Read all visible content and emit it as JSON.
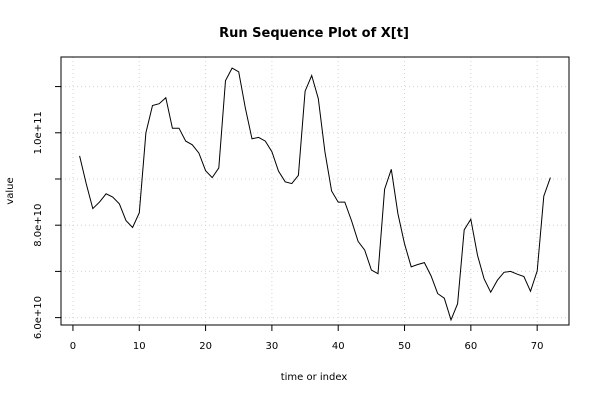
{
  "chart_data": {
    "type": "line",
    "title": "Run Sequence Plot of X[t]",
    "xlabel": "time or index",
    "ylabel": "value",
    "xlim": [
      -1.8,
      74.8
    ],
    "ylim": [
      58400000000,
      116400000000
    ],
    "x_ticks": [
      {
        "value": 0,
        "label": "0"
      },
      {
        "value": 10,
        "label": "10"
      },
      {
        "value": 20,
        "label": "20"
      },
      {
        "value": 30,
        "label": "30"
      },
      {
        "value": 40,
        "label": "40"
      },
      {
        "value": 50,
        "label": "50"
      },
      {
        "value": 60,
        "label": "60"
      },
      {
        "value": 70,
        "label": "70"
      }
    ],
    "y_ticks": [
      {
        "value": 60000000000,
        "label": "6.0e+10"
      },
      {
        "value": 70000000000,
        "label": ""
      },
      {
        "value": 80000000000,
        "label": "8.0e+10"
      },
      {
        "value": 90000000000,
        "label": ""
      },
      {
        "value": 100000000000,
        "label": "1.0e+11"
      },
      {
        "value": 110000000000,
        "label": ""
      }
    ],
    "grid": true,
    "series": [
      {
        "values": [
          [
            1,
            95000000000
          ],
          [
            2,
            89000000000
          ],
          [
            3,
            83600000000
          ],
          [
            4,
            85000000000
          ],
          [
            5,
            86800000000
          ],
          [
            6,
            86100000000
          ],
          [
            7,
            84600000000
          ],
          [
            8,
            81000000000
          ],
          [
            9,
            79500000000
          ],
          [
            10,
            82700000000
          ],
          [
            11,
            100000000000
          ],
          [
            12,
            105900000000
          ],
          [
            13,
            106300000000
          ],
          [
            14,
            107600000000
          ],
          [
            15,
            101000000000
          ],
          [
            16,
            101000000000
          ],
          [
            17,
            98200000000
          ],
          [
            18,
            97400000000
          ],
          [
            19,
            95600000000
          ],
          [
            20,
            91800000000
          ],
          [
            21,
            90300000000
          ],
          [
            22,
            92400000000
          ],
          [
            23,
            111300000000
          ],
          [
            24,
            114000000000
          ],
          [
            25,
            113200000000
          ],
          [
            26,
            105300000000
          ],
          [
            27,
            98700000000
          ],
          [
            28,
            99000000000
          ],
          [
            29,
            98200000000
          ],
          [
            30,
            95900000000
          ],
          [
            31,
            91700000000
          ],
          [
            32,
            89400000000
          ],
          [
            33,
            89000000000
          ],
          [
            34,
            90800000000
          ],
          [
            35,
            109000000000
          ],
          [
            36,
            112400000000
          ],
          [
            37,
            107400000000
          ],
          [
            38,
            95900000000
          ],
          [
            39,
            87400000000
          ],
          [
            40,
            85000000000
          ],
          [
            41,
            85000000000
          ],
          [
            42,
            81000000000
          ],
          [
            43,
            76500000000
          ],
          [
            44,
            74600000000
          ],
          [
            45,
            70300000000
          ],
          [
            46,
            69500000000
          ],
          [
            47,
            87800000000
          ],
          [
            48,
            92100000000
          ],
          [
            49,
            82500000000
          ],
          [
            50,
            76000000000
          ],
          [
            51,
            71000000000
          ],
          [
            52,
            71500000000
          ],
          [
            53,
            71900000000
          ],
          [
            54,
            69000000000
          ],
          [
            55,
            65200000000
          ],
          [
            56,
            64200000000
          ],
          [
            57,
            59500000000
          ],
          [
            58,
            63000000000
          ],
          [
            59,
            79000000000
          ],
          [
            60,
            81300000000
          ],
          [
            61,
            73500000000
          ],
          [
            62,
            68400000000
          ],
          [
            63,
            65500000000
          ],
          [
            64,
            68100000000
          ],
          [
            65,
            69800000000
          ],
          [
            66,
            70000000000
          ],
          [
            67,
            69400000000
          ],
          [
            68,
            68900000000
          ],
          [
            69,
            65700000000
          ],
          [
            70,
            70100000000
          ],
          [
            71,
            86300000000
          ],
          [
            72,
            90300000000
          ]
        ]
      }
    ]
  }
}
